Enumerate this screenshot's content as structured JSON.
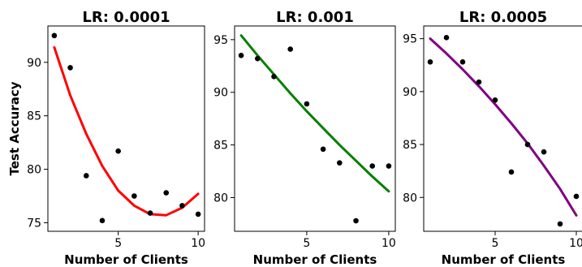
{
  "chart_data": [
    {
      "type": "scatter",
      "title": "LR: 0.0001",
      "xlabel": "Number of Clients",
      "ylabel": "Test Accuracy",
      "xlim": [
        0.6,
        10.4
      ],
      "ylim": [
        74.2,
        93.4
      ],
      "xticks": [
        5,
        10
      ],
      "yticks": [
        75,
        80,
        85,
        90
      ],
      "color": "#ff0000",
      "points": [
        [
          1,
          92.5
        ],
        [
          2,
          89.5
        ],
        [
          3,
          79.4
        ],
        [
          4,
          75.2
        ],
        [
          5,
          81.7
        ],
        [
          6,
          77.5
        ],
        [
          7,
          75.9
        ],
        [
          8,
          77.8
        ],
        [
          9,
          76.6
        ],
        [
          10,
          75.8
        ]
      ],
      "fit": [
        [
          1,
          91.4
        ],
        [
          2,
          86.9
        ],
        [
          3,
          83.3
        ],
        [
          4,
          80.3
        ],
        [
          5,
          78.0
        ],
        [
          6,
          76.6
        ],
        [
          7,
          75.8
        ],
        [
          8,
          75.7
        ],
        [
          9,
          76.4
        ],
        [
          10,
          77.7
        ]
      ]
    },
    {
      "type": "scatter",
      "title": "LR: 0.001",
      "xlabel": "Number of Clients",
      "ylabel": "",
      "xlim": [
        0.6,
        10.4
      ],
      "ylim": [
        76.8,
        96.3
      ],
      "xticks": [
        5,
        10
      ],
      "yticks": [
        80,
        85,
        90,
        95
      ],
      "color": "#008000",
      "points": [
        [
          1,
          93.5
        ],
        [
          2,
          93.2
        ],
        [
          3,
          91.5
        ],
        [
          4,
          94.1
        ],
        [
          5,
          88.9
        ],
        [
          6,
          84.6
        ],
        [
          7,
          83.3
        ],
        [
          8,
          77.8
        ],
        [
          9,
          83.0
        ],
        [
          10,
          83.0
        ]
      ],
      "fit": [
        [
          1,
          95.4
        ],
        [
          2,
          93.5
        ],
        [
          3,
          91.7
        ],
        [
          4,
          89.9
        ],
        [
          5,
          88.2
        ],
        [
          6,
          86.6
        ],
        [
          7,
          85.0
        ],
        [
          8,
          83.5
        ],
        [
          9,
          82.0
        ],
        [
          10,
          80.6
        ]
      ]
    },
    {
      "type": "scatter",
      "title": "LR: 0.0005",
      "xlabel": "Number of Clients",
      "ylabel": "",
      "xlim": [
        0.6,
        10.4
      ],
      "ylim": [
        76.8,
        96.2
      ],
      "xticks": [
        5,
        10
      ],
      "yticks": [
        80,
        85,
        90,
        95
      ],
      "color": "#800080",
      "points": [
        [
          1,
          92.8
        ],
        [
          2,
          95.1
        ],
        [
          3,
          92.8
        ],
        [
          4,
          90.9
        ],
        [
          5,
          89.2
        ],
        [
          6,
          82.4
        ],
        [
          7,
          85.0
        ],
        [
          8,
          84.3
        ],
        [
          9,
          77.5
        ],
        [
          10,
          80.1
        ]
      ],
      "fit": [
        [
          1,
          95.0
        ],
        [
          2,
          93.6
        ],
        [
          3,
          92.1
        ],
        [
          4,
          90.5
        ],
        [
          5,
          88.8
        ],
        [
          6,
          87.0
        ],
        [
          7,
          85.1
        ],
        [
          8,
          83.0
        ],
        [
          9,
          80.8
        ],
        [
          10,
          78.3
        ]
      ]
    }
  ]
}
